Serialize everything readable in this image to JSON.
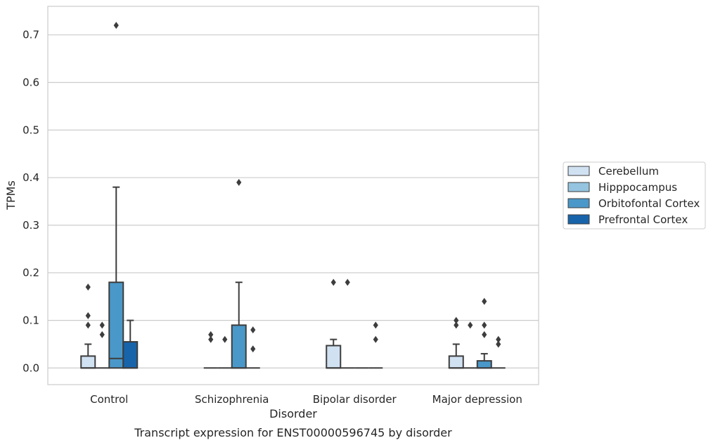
{
  "caption": "Transcript expression for ENST00000596745 by disorder",
  "chart_data": {
    "type": "box",
    "title": "",
    "xlabel": "Disorder",
    "ylabel": "TPMs",
    "ylim": [
      -0.035,
      0.76
    ],
    "yticks": [
      0.0,
      0.1,
      0.2,
      0.3,
      0.4,
      0.5,
      0.6,
      0.7
    ],
    "ytick_labels": [
      "0.0",
      "0.1",
      "0.2",
      "0.3",
      "0.4",
      "0.5",
      "0.6",
      "0.7"
    ],
    "grid": "horizontal",
    "legend_position": "right",
    "categories": [
      "Control",
      "Schizophrenia",
      "Bipolar disorder",
      "Major depression"
    ],
    "series": [
      {
        "name": "Cerebellum",
        "color": "#d0e1f2",
        "boxes": [
          {
            "q1": 0.0,
            "median": 0.0,
            "q3": 0.025,
            "whisker_low": 0.0,
            "whisker_high": 0.05,
            "outliers": [
              0.09,
              0.11,
              0.17
            ]
          },
          {
            "q1": 0.0,
            "median": 0.0,
            "q3": 0.0,
            "whisker_low": 0.0,
            "whisker_high": 0.0,
            "outliers": [
              0.06,
              0.07
            ]
          },
          {
            "q1": 0.0,
            "median": 0.0,
            "q3": 0.047,
            "whisker_low": 0.0,
            "whisker_high": 0.06,
            "outliers": [
              0.18
            ]
          },
          {
            "q1": 0.0,
            "median": 0.0,
            "q3": 0.025,
            "whisker_low": 0.0,
            "whisker_high": 0.05,
            "outliers": [
              0.09,
              0.1
            ]
          }
        ]
      },
      {
        "name": "Hipppocampus",
        "color": "#94c4df",
        "boxes": [
          {
            "q1": 0.0,
            "median": 0.0,
            "q3": 0.0,
            "whisker_low": 0.0,
            "whisker_high": 0.0,
            "outliers": [
              0.07,
              0.09
            ]
          },
          {
            "q1": 0.0,
            "median": 0.0,
            "q3": 0.0,
            "whisker_low": 0.0,
            "whisker_high": 0.0,
            "outliers": [
              0.06
            ]
          },
          {
            "q1": 0.0,
            "median": 0.0,
            "q3": 0.0,
            "whisker_low": 0.0,
            "whisker_high": 0.0,
            "outliers": [
              0.18
            ]
          },
          {
            "q1": 0.0,
            "median": 0.0,
            "q3": 0.0,
            "whisker_low": 0.0,
            "whisker_high": 0.0,
            "outliers": [
              0.09
            ]
          }
        ]
      },
      {
        "name": "Orbitofontal Cortex",
        "color": "#4a98c9",
        "boxes": [
          {
            "q1": 0.0,
            "median": 0.02,
            "q3": 0.18,
            "whisker_low": 0.0,
            "whisker_high": 0.38,
            "outliers": [
              0.72
            ]
          },
          {
            "q1": 0.0,
            "median": 0.0,
            "q3": 0.09,
            "whisker_low": 0.0,
            "whisker_high": 0.18,
            "outliers": [
              0.39
            ]
          },
          {
            "q1": 0.0,
            "median": 0.0,
            "q3": 0.0,
            "whisker_low": 0.0,
            "whisker_high": 0.0,
            "outliers": []
          },
          {
            "q1": 0.0,
            "median": 0.0,
            "q3": 0.015,
            "whisker_low": 0.0,
            "whisker_high": 0.03,
            "outliers": [
              0.07,
              0.09,
              0.14
            ]
          }
        ]
      },
      {
        "name": "Prefrontal Cortex",
        "color": "#1764ab",
        "boxes": [
          {
            "q1": 0.0,
            "median": 0.0,
            "q3": 0.055,
            "whisker_low": 0.0,
            "whisker_high": 0.1,
            "outliers": []
          },
          {
            "q1": 0.0,
            "median": 0.0,
            "q3": 0.0,
            "whisker_low": 0.0,
            "whisker_high": 0.0,
            "outliers": [
              0.04,
              0.08
            ]
          },
          {
            "q1": 0.0,
            "median": 0.0,
            "q3": 0.0,
            "whisker_low": 0.0,
            "whisker_high": 0.0,
            "outliers": [
              0.06,
              0.09
            ]
          },
          {
            "q1": 0.0,
            "median": 0.0,
            "q3": 0.0,
            "whisker_low": 0.0,
            "whisker_high": 0.0,
            "outliers": [
              0.05,
              0.06
            ]
          }
        ]
      }
    ]
  }
}
